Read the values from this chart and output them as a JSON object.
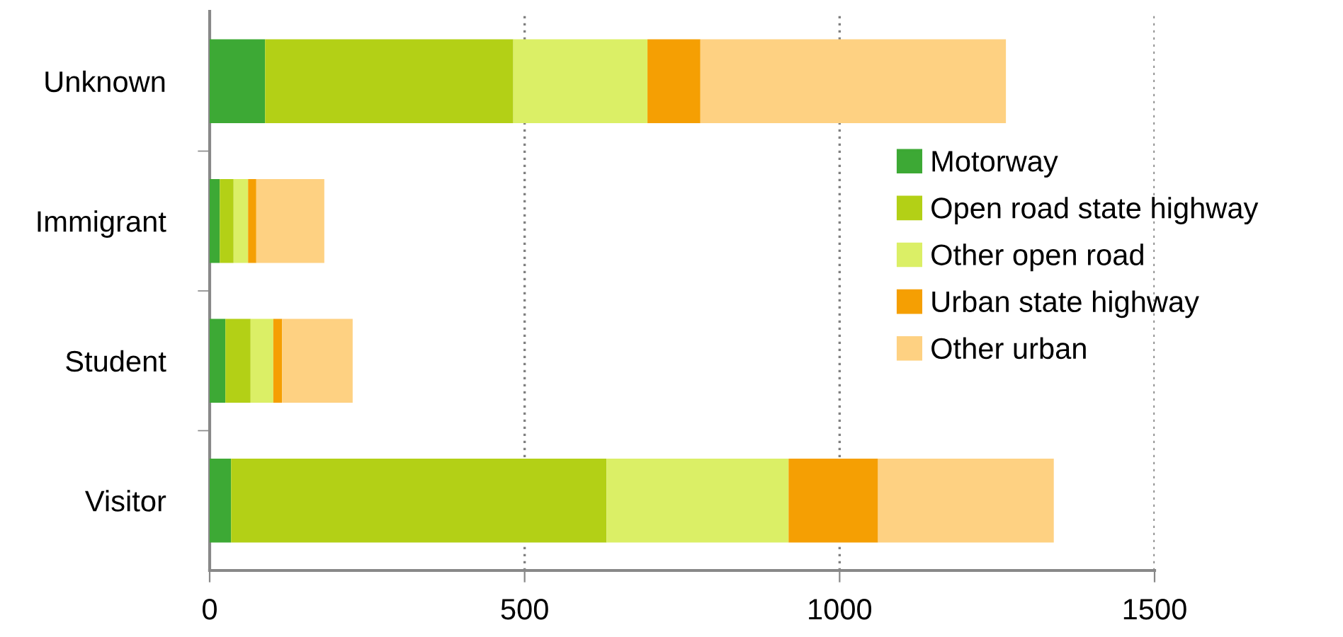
{
  "chart_data": {
    "type": "bar",
    "orientation": "horizontal",
    "stacked": true,
    "categories": [
      "Unknown",
      "Immigrant",
      "Student",
      "Visitor"
    ],
    "series": [
      {
        "name": "Motorway",
        "color": "#3da935",
        "values": [
          88,
          16,
          25,
          34
        ]
      },
      {
        "name": "Open road state highway",
        "color": "#b3d016",
        "values": [
          394,
          22,
          40,
          596
        ]
      },
      {
        "name": "Other open road",
        "color": "#dbef66",
        "values": [
          213,
          23,
          36,
          289
        ]
      },
      {
        "name": "Urban state highway",
        "color": "#f59f03",
        "values": [
          84,
          13,
          14,
          142
        ]
      },
      {
        "name": "Other urban",
        "color": "#fed182",
        "values": [
          485,
          108,
          112,
          279
        ]
      }
    ],
    "xlim": [
      0,
      1500
    ],
    "xticks": [
      0,
      500,
      1000,
      1500
    ],
    "grid": "x",
    "legend": "right"
  }
}
